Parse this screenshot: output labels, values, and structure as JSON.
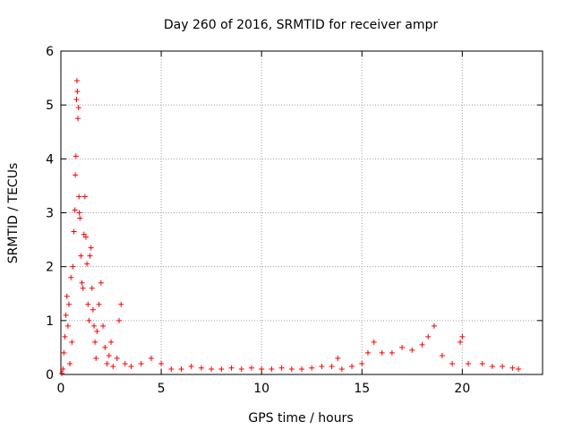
{
  "chart_data": {
    "type": "scatter",
    "title": "Day 260 of 2016, SRMTID for receiver ampr",
    "xlabel": "GPS time / hours",
    "ylabel": "SRMTID / TECUs",
    "xlim": [
      0,
      24
    ],
    "ylim": [
      0,
      6
    ],
    "xticks": [
      0,
      5,
      10,
      15,
      20
    ],
    "yticks": [
      0,
      1,
      2,
      3,
      4,
      5,
      6
    ],
    "grid": true,
    "marker": "+",
    "color": "#ff0000",
    "series": [
      {
        "name": "SRMTID",
        "points": [
          [
            0.05,
            0.02
          ],
          [
            0.1,
            0.1
          ],
          [
            0.15,
            0.4
          ],
          [
            0.2,
            0.7
          ],
          [
            0.25,
            1.1
          ],
          [
            0.3,
            1.45
          ],
          [
            0.35,
            0.9
          ],
          [
            0.4,
            1.3
          ],
          [
            0.45,
            0.2
          ],
          [
            0.5,
            1.8
          ],
          [
            0.55,
            0.6
          ],
          [
            0.6,
            2.0
          ],
          [
            0.65,
            2.65
          ],
          [
            0.7,
            3.05
          ],
          [
            0.72,
            3.7
          ],
          [
            0.75,
            4.05
          ],
          [
            0.78,
            5.1
          ],
          [
            0.8,
            5.45
          ],
          [
            0.82,
            5.25
          ],
          [
            0.85,
            4.75
          ],
          [
            0.88,
            4.95
          ],
          [
            0.9,
            3.3
          ],
          [
            0.92,
            3.0
          ],
          [
            0.95,
            2.9
          ],
          [
            1.0,
            2.2
          ],
          [
            1.05,
            1.7
          ],
          [
            1.1,
            1.6
          ],
          [
            1.15,
            2.6
          ],
          [
            1.2,
            3.3
          ],
          [
            1.25,
            2.55
          ],
          [
            1.3,
            2.05
          ],
          [
            1.35,
            1.3
          ],
          [
            1.4,
            1.0
          ],
          [
            1.45,
            2.2
          ],
          [
            1.5,
            2.35
          ],
          [
            1.55,
            1.6
          ],
          [
            1.6,
            1.2
          ],
          [
            1.65,
            0.9
          ],
          [
            1.7,
            0.6
          ],
          [
            1.75,
            0.3
          ],
          [
            1.8,
            0.8
          ],
          [
            1.9,
            1.3
          ],
          [
            2.0,
            1.7
          ],
          [
            2.1,
            0.9
          ],
          [
            2.2,
            0.5
          ],
          [
            2.3,
            0.2
          ],
          [
            2.4,
            0.35
          ],
          [
            2.5,
            0.6
          ],
          [
            2.6,
            0.15
          ],
          [
            2.8,
            0.3
          ],
          [
            2.9,
            1.0
          ],
          [
            3.0,
            1.3
          ],
          [
            3.2,
            0.2
          ],
          [
            3.5,
            0.15
          ],
          [
            4.0,
            0.2
          ],
          [
            4.5,
            0.3
          ],
          [
            5.0,
            0.2
          ],
          [
            5.5,
            0.1
          ],
          [
            6.0,
            0.1
          ],
          [
            6.5,
            0.15
          ],
          [
            7.0,
            0.12
          ],
          [
            7.5,
            0.1
          ],
          [
            8.0,
            0.1
          ],
          [
            8.5,
            0.12
          ],
          [
            9.0,
            0.1
          ],
          [
            9.5,
            0.12
          ],
          [
            10.0,
            0.1
          ],
          [
            10.5,
            0.1
          ],
          [
            11.0,
            0.12
          ],
          [
            11.5,
            0.1
          ],
          [
            12.0,
            0.1
          ],
          [
            12.5,
            0.12
          ],
          [
            13.0,
            0.15
          ],
          [
            13.5,
            0.15
          ],
          [
            13.8,
            0.3
          ],
          [
            14.0,
            0.1
          ],
          [
            14.5,
            0.15
          ],
          [
            15.0,
            0.2
          ],
          [
            15.3,
            0.4
          ],
          [
            15.6,
            0.6
          ],
          [
            16.0,
            0.4
          ],
          [
            16.5,
            0.4
          ],
          [
            17.0,
            0.5
          ],
          [
            17.5,
            0.45
          ],
          [
            18.0,
            0.55
          ],
          [
            18.3,
            0.7
          ],
          [
            18.6,
            0.9
          ],
          [
            19.0,
            0.35
          ],
          [
            19.5,
            0.2
          ],
          [
            19.9,
            0.6
          ],
          [
            20.0,
            0.7
          ],
          [
            20.3,
            0.2
          ],
          [
            21.0,
            0.2
          ],
          [
            21.5,
            0.15
          ],
          [
            22.0,
            0.15
          ],
          [
            22.5,
            0.12
          ],
          [
            22.8,
            0.1
          ]
        ]
      }
    ]
  }
}
